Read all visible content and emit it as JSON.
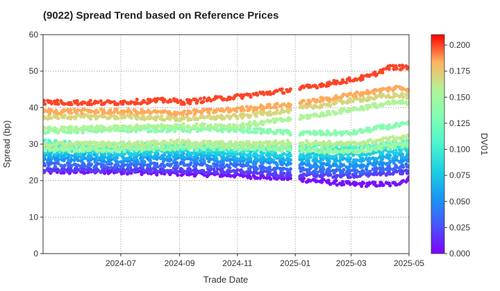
{
  "chart_data": {
    "type": "scatter",
    "title": "(9022)   Spread Trend based on Reference Prices",
    "xlabel": "Trade Date",
    "ylabel": "Spread (bp)",
    "colorbar_label": "DV01",
    "xlim": [
      "2024-04-10",
      "2025-05-01"
    ],
    "ylim": [
      0,
      60
    ],
    "x_ticks": [
      "2024-07",
      "2024-09",
      "2024-11",
      "2025-01",
      "2025-03",
      "2025-05"
    ],
    "y_ticks": [
      0,
      10,
      20,
      30,
      40,
      50,
      60
    ],
    "colorbar_range": [
      0.0,
      0.21
    ],
    "colorbar_ticks": [
      "0.000",
      "0.025",
      "0.050",
      "0.075",
      "0.100",
      "0.125",
      "0.150",
      "0.175",
      "0.200"
    ],
    "colormap": "rainbow",
    "grid": true,
    "series": [
      {
        "dv01": 0.2,
        "values": [
          [
            "2024-04-10",
            41.5
          ],
          [
            "2024-06-15",
            41.3
          ],
          [
            "2024-08-20",
            42.0
          ],
          [
            "2024-09-05",
            41.5
          ],
          [
            "2024-11-01",
            43.0
          ],
          [
            "2025-01-01",
            45.0
          ],
          [
            "2025-03-20",
            48.5
          ],
          [
            "2025-04-10",
            51.0
          ],
          [
            "2025-05-01",
            51.0
          ]
        ]
      },
      {
        "dv01": 0.185,
        "values": [
          [
            "2024-04-10",
            39.0
          ],
          [
            "2024-07-01",
            39.0
          ],
          [
            "2024-09-01",
            38.5
          ],
          [
            "2024-11-01",
            39.5
          ],
          [
            "2025-01-01",
            41.0
          ],
          [
            "2025-03-01",
            43.5
          ],
          [
            "2025-04-20",
            45.5
          ],
          [
            "2025-05-01",
            45.0
          ]
        ]
      },
      {
        "dv01": 0.17,
        "values": [
          [
            "2024-04-10",
            37.5
          ],
          [
            "2024-07-01",
            37.5
          ],
          [
            "2024-09-01",
            37.0
          ],
          [
            "2024-11-01",
            37.5
          ],
          [
            "2025-01-01",
            39.5
          ],
          [
            "2025-03-01",
            42.0
          ],
          [
            "2025-04-20",
            43.5
          ],
          [
            "2025-05-01",
            43.0
          ]
        ]
      },
      {
        "dv01": 0.155,
        "values": [
          [
            "2024-04-10",
            34.0
          ],
          [
            "2024-07-01",
            34.5
          ],
          [
            "2024-09-01",
            35.0
          ],
          [
            "2024-11-01",
            35.0
          ],
          [
            "2025-01-01",
            37.0
          ],
          [
            "2025-03-01",
            39.5
          ],
          [
            "2025-04-20",
            41.5
          ],
          [
            "2025-05-01",
            41.0
          ]
        ]
      },
      {
        "dv01": 0.135,
        "values": [
          [
            "2024-04-10",
            33.5
          ],
          [
            "2024-07-01",
            34.0
          ],
          [
            "2024-09-01",
            34.0
          ],
          [
            "2024-11-01",
            34.0
          ],
          [
            "2025-01-01",
            33.0
          ],
          [
            "2025-03-01",
            33.0
          ],
          [
            "2025-04-01",
            34.5
          ],
          [
            "2025-05-01",
            35.5
          ]
        ]
      },
      {
        "dv01": 0.16,
        "values": [
          [
            "2024-04-10",
            30.0
          ],
          [
            "2024-07-01",
            30.0
          ],
          [
            "2024-09-01",
            30.5
          ],
          [
            "2024-11-01",
            30.0
          ],
          [
            "2025-01-01",
            30.5
          ],
          [
            "2025-03-01",
            30.0
          ],
          [
            "2025-05-01",
            32.0
          ]
        ]
      },
      {
        "dv01": 0.145,
        "values": [
          [
            "2024-04-10",
            28.5
          ],
          [
            "2024-07-01",
            28.5
          ],
          [
            "2024-09-01",
            29.0
          ],
          [
            "2024-11-01",
            29.0
          ],
          [
            "2025-01-01",
            28.5
          ],
          [
            "2025-03-01",
            28.0
          ],
          [
            "2025-05-01",
            30.0
          ]
        ]
      },
      {
        "dv01": 0.11,
        "values": [
          [
            "2024-04-10",
            30.5
          ],
          [
            "2024-07-01",
            29.5
          ],
          [
            "2024-09-01",
            30.0
          ],
          [
            "2024-11-01",
            29.5
          ],
          [
            "2025-01-01",
            29.5
          ],
          [
            "2025-03-01",
            29.5
          ],
          [
            "2025-05-01",
            30.5
          ]
        ]
      },
      {
        "dv01": 0.095,
        "values": [
          [
            "2024-04-10",
            29.5
          ],
          [
            "2024-07-01",
            28.5
          ],
          [
            "2024-09-01",
            29.0
          ],
          [
            "2024-11-01",
            28.5
          ],
          [
            "2025-01-01",
            28.5
          ],
          [
            "2025-03-01",
            28.5
          ],
          [
            "2025-05-01",
            29.5
          ]
        ]
      },
      {
        "dv01": 0.08,
        "values": [
          [
            "2024-04-10",
            28.0
          ],
          [
            "2024-07-01",
            27.5
          ],
          [
            "2024-09-01",
            28.0
          ],
          [
            "2024-11-01",
            27.5
          ],
          [
            "2025-01-01",
            27.0
          ],
          [
            "2025-03-01",
            27.0
          ],
          [
            "2025-05-01",
            28.5
          ]
        ]
      },
      {
        "dv01": 0.065,
        "values": [
          [
            "2024-04-10",
            27.0
          ],
          [
            "2024-07-01",
            26.5
          ],
          [
            "2024-09-01",
            27.0
          ],
          [
            "2024-11-01",
            26.5
          ],
          [
            "2025-01-01",
            26.0
          ],
          [
            "2025-03-01",
            25.5
          ],
          [
            "2025-05-01",
            27.0
          ]
        ]
      },
      {
        "dv01": 0.05,
        "values": [
          [
            "2024-04-10",
            26.0
          ],
          [
            "2024-07-01",
            25.5
          ],
          [
            "2024-09-01",
            26.0
          ],
          [
            "2024-11-01",
            25.5
          ],
          [
            "2025-01-01",
            24.5
          ],
          [
            "2025-03-01",
            24.0
          ],
          [
            "2025-05-01",
            25.5
          ]
        ]
      },
      {
        "dv01": 0.035,
        "values": [
          [
            "2024-04-10",
            24.5
          ],
          [
            "2024-07-01",
            24.0
          ],
          [
            "2024-09-01",
            24.5
          ],
          [
            "2024-11-01",
            24.0
          ],
          [
            "2025-01-01",
            23.0
          ],
          [
            "2025-03-01",
            22.5
          ],
          [
            "2025-05-01",
            24.0
          ]
        ]
      },
      {
        "dv01": 0.02,
        "values": [
          [
            "2024-04-10",
            23.0
          ],
          [
            "2024-07-01",
            23.0
          ],
          [
            "2024-09-01",
            23.0
          ],
          [
            "2024-11-01",
            22.5
          ],
          [
            "2025-01-01",
            21.5
          ],
          [
            "2025-03-01",
            21.5
          ],
          [
            "2025-05-01",
            22.5
          ]
        ]
      },
      {
        "dv01": 0.005,
        "values": [
          [
            "2024-04-10",
            22.5
          ],
          [
            "2024-07-01",
            22.5
          ],
          [
            "2024-09-01",
            22.0
          ],
          [
            "2024-11-01",
            21.5
          ],
          [
            "2025-01-01",
            20.5
          ],
          [
            "2025-03-01",
            19.0
          ],
          [
            "2025-04-15",
            19.0
          ],
          [
            "2025-05-01",
            20.5
          ]
        ]
      }
    ]
  }
}
